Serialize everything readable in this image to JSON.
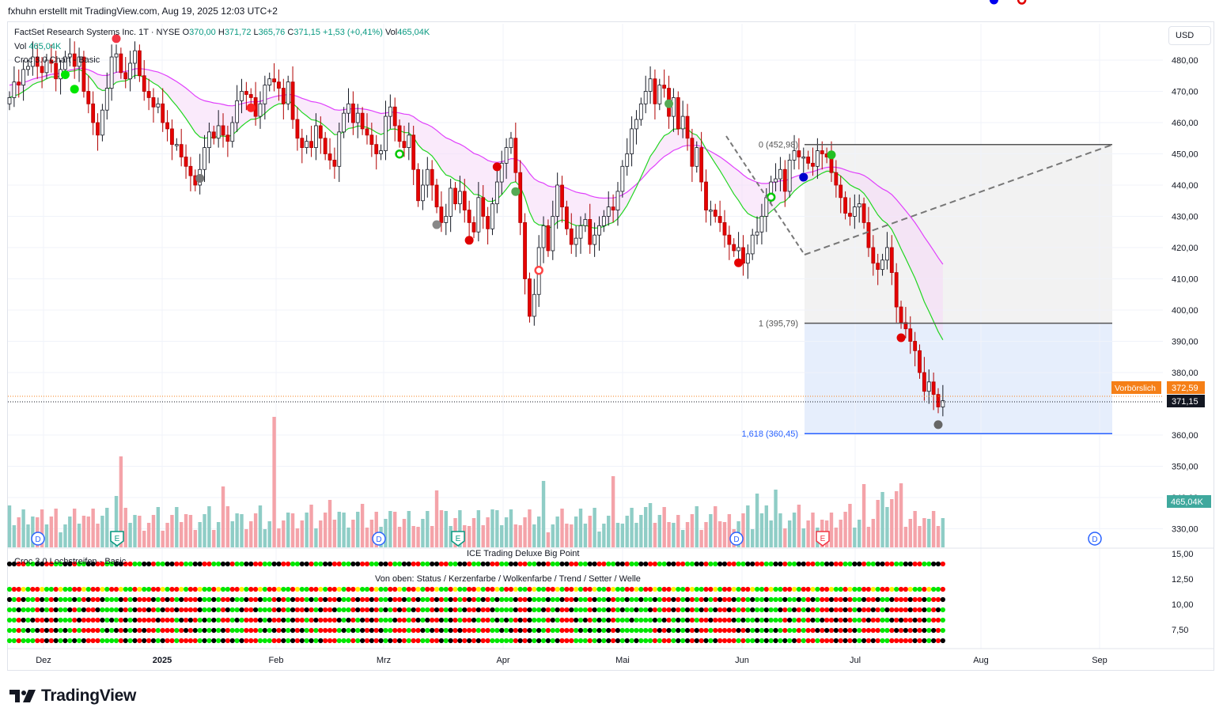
{
  "header": {
    "created_by": "fxhuhn erstellt mit TradingView.com, Aug 19, 2025 12:03 UTC+2"
  },
  "legend": {
    "symbol": "FactSet Research Systems Inc.",
    "interval": "1T",
    "exchange": "NYSE",
    "o_label": "O",
    "o_value": "370,00",
    "h_label": "H",
    "h_value": "371,72",
    "l_label": "L",
    "l_value": "365,76",
    "c_label": "C",
    "c_value": "371,15",
    "change": "+1,53 (+0,41%)",
    "vol_label": "Vol",
    "vol_value": "465,04K",
    "vol_row_label": "Vol",
    "vol_row_value": "465,04K",
    "indicator": "Croc 3.0 Chart - Basic"
  },
  "toolbar": {
    "currency": "USD"
  },
  "fib": {
    "level0": "0 (452,98)",
    "level1": "1 (395,79)",
    "level1618": "1,618 (360,45)"
  },
  "badges": {
    "premarket_label": "Vorbörslich",
    "premarket_value": "372,59",
    "last_price": "371,15",
    "volume": "465,04K"
  },
  "panes": {
    "lower_title": "ICE Trading Deluxe Big Point",
    "lower_indicator": "Croc 3.0 Lochstreifen - Basic",
    "lower_caption": "Von oben: Status / Kerzenfarbe / Wolkenfarbe / Trend / Setter / Welle"
  },
  "brand": {
    "name": "TradingView"
  },
  "colors": {
    "up": "#089981",
    "down": "#f23645",
    "volume_up": "#8fcdc6",
    "volume_down": "#f4a3a9",
    "cloud_line": "#e040fb",
    "fast_line": "#22d622",
    "fib_up_zone": "#f2f2f2",
    "fib_down_zone": "#e6eefc",
    "premarket": "#f57f17",
    "fib_1618": "#2962ff",
    "croc_red": "#ff0000",
    "croc_green": "#00e600",
    "croc_yellow": "#ffee00",
    "croc_black": "#000000"
  },
  "chart_data": {
    "type": "candlestick",
    "y_ticks": [
      "480,00",
      "470,00",
      "460,00",
      "450,00",
      "440,00",
      "430,00",
      "420,00",
      "410,00",
      "400,00",
      "390,00",
      "380,00",
      "360,00",
      "350,00",
      "340,00",
      "330,00"
    ],
    "lower_y_ticks": [
      "15,00",
      "12,50",
      "10,00",
      "7,50"
    ],
    "x_ticks": [
      "Dez",
      "2025",
      "Feb",
      "Mrz",
      "Apr",
      "Mai",
      "Jun",
      "Jul",
      "Aug",
      "Sep"
    ],
    "ylim": [
      325,
      488
    ],
    "event_markers": [
      "D",
      "E",
      "D",
      "E",
      "D",
      "E",
      "D"
    ],
    "fib_levels": [
      452.98,
      395.79,
      360.45
    ],
    "closes": [
      468,
      473,
      472,
      477,
      478,
      481,
      478,
      476,
      480,
      479,
      474,
      477,
      481,
      482,
      478,
      481,
      470,
      466,
      460,
      456,
      464,
      471,
      481,
      482,
      476,
      474,
      479,
      483,
      475,
      470,
      468,
      465,
      466,
      460,
      458,
      453,
      453,
      449,
      446,
      443,
      440,
      445,
      452,
      457,
      455,
      459,
      456,
      454,
      460,
      467,
      470,
      469,
      468,
      462,
      466,
      472,
      474,
      473,
      471,
      466,
      473,
      461,
      455,
      452,
      454,
      452,
      459,
      455,
      450,
      448,
      446,
      457,
      463,
      466,
      460,
      463,
      458,
      456,
      453,
      450,
      451,
      462,
      465,
      459,
      454,
      452,
      456,
      445,
      435,
      440,
      445,
      440,
      433,
      428,
      430,
      439,
      434,
      438,
      432,
      428,
      425,
      436,
      430,
      426,
      434,
      441,
      447,
      452,
      455,
      444,
      428,
      410,
      398,
      405,
      420,
      427,
      419,
      430,
      440,
      433,
      426,
      421,
      423,
      427,
      429,
      421,
      424,
      427,
      430,
      433,
      432,
      438,
      446,
      450,
      458,
      461,
      466,
      470,
      474,
      466,
      472,
      471,
      462,
      468,
      458,
      462,
      455,
      446,
      452,
      441,
      432,
      432,
      430,
      428,
      424,
      421,
      419,
      420,
      415,
      418,
      424,
      425,
      430,
      436,
      441,
      442,
      445,
      438,
      448,
      451,
      449,
      449,
      447,
      446,
      451,
      450,
      449,
      444,
      440,
      436,
      431,
      430,
      433,
      434,
      428,
      420,
      415,
      413,
      416,
      420,
      412,
      401,
      396,
      394,
      390,
      387,
      380,
      374,
      377,
      373,
      369,
      371
    ],
    "value_format": "price in USD"
  }
}
